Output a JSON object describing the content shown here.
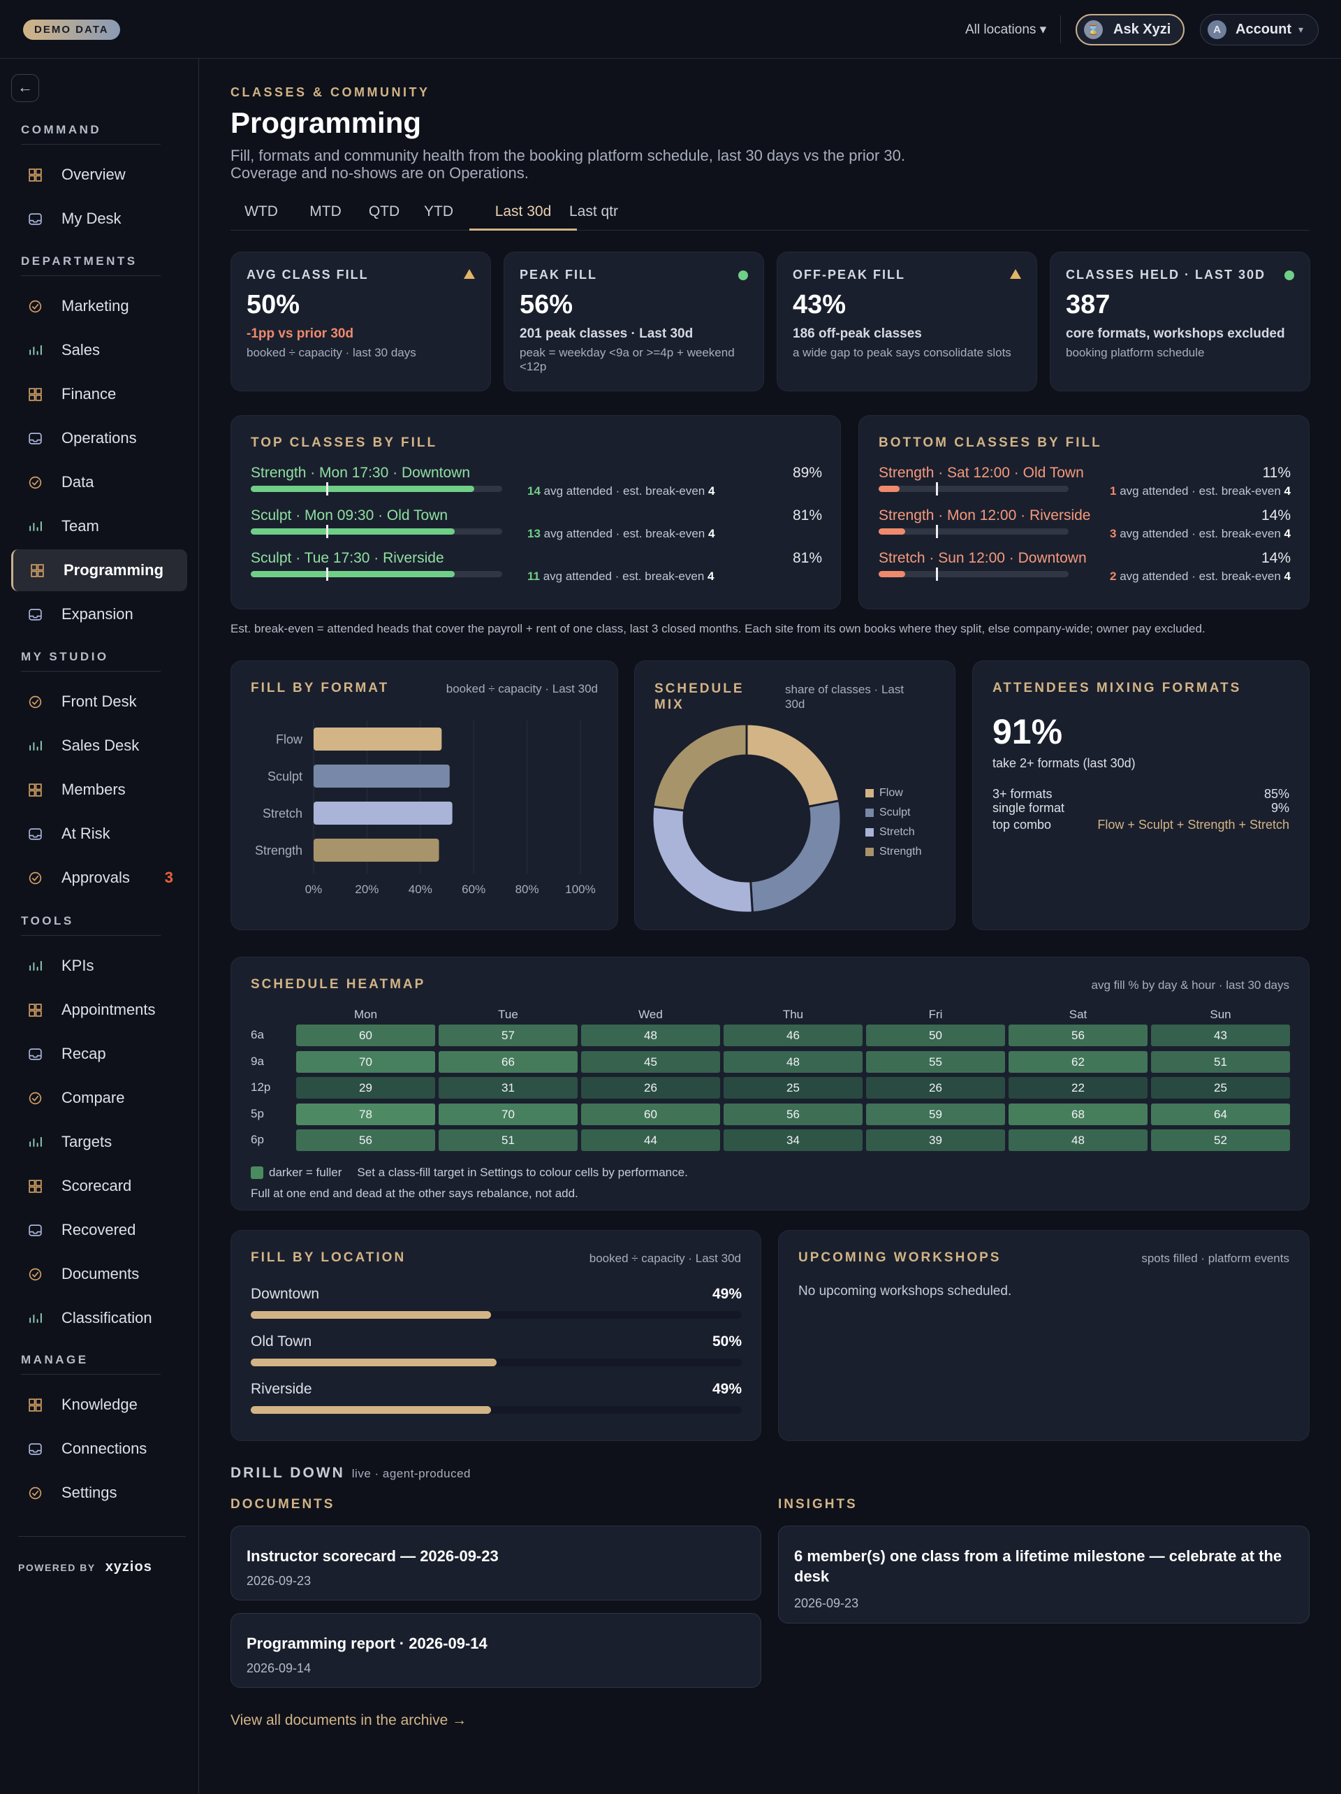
{
  "topbar": {
    "demo_badge": "DEMO DATA",
    "locations": "All locations ▾",
    "ask_label": "Ask Xyzi",
    "ask_avatar": "⌛",
    "account_label": "Account",
    "account_avatar": "A",
    "account_caret": "▾"
  },
  "sidebar": {
    "back_glyph": "←",
    "sections": [
      {
        "label": "COMMAND",
        "items": [
          "Overview",
          "My Desk"
        ]
      },
      {
        "label": "DEPARTMENTS",
        "items": [
          "Marketing",
          "Sales",
          "Finance",
          "Operations",
          "Data",
          "Team",
          "Programming",
          "Expansion"
        ]
      },
      {
        "label": "MY STUDIO",
        "items": [
          "Front Desk",
          "Sales Desk",
          "Members",
          "At Risk",
          "Approvals"
        ]
      },
      {
        "label": "TOOLS",
        "items": [
          "KPIs",
          "Appointments",
          "Recap",
          "Compare",
          "Targets",
          "Scorecard",
          "Recovered",
          "Documents",
          "Classification"
        ]
      },
      {
        "label": "MANAGE",
        "items": [
          "Knowledge",
          "Connections",
          "Settings"
        ]
      }
    ],
    "active": "Programming",
    "approvals_badge": "3",
    "powered_by": "POWERED BY",
    "brand": "xyzios",
    "icon_color": "#d2a064"
  },
  "page": {
    "eyebrow": "CLASSES & COMMUNITY",
    "title": "Programming",
    "subtitle_1": "Fill, formats and community health from the booking platform schedule, last 30 days vs the prior 30.",
    "subtitle_2": "Coverage and no-shows are on Operations.",
    "tabs": [
      "WTD",
      "MTD",
      "QTD",
      "YTD",
      "Last 30d",
      "Last qtr"
    ],
    "active_tab": "Last 30d"
  },
  "kpis": [
    {
      "label": "AVG CLASS FILL",
      "value": "50%",
      "line1": "-1pp vs prior 30d",
      "line2": "booked ÷ capacity · last 30 days",
      "status": "warn"
    },
    {
      "label": "PEAK FILL",
      "value": "56%",
      "line1": "201 peak classes · Last 30d",
      "line2": "peak = weekday <9a or >=4p + weekend <12p",
      "status": "good"
    },
    {
      "label": "OFF-PEAK FILL",
      "value": "43%",
      "line1": "186 off-peak classes",
      "line2": "a wide gap to peak says consolidate slots",
      "status": "warn"
    },
    {
      "label": "CLASSES HELD · LAST 30D",
      "value": "387",
      "line1": "core formats, workshops excluded",
      "line2": "booking platform schedule",
      "status": "good"
    }
  ],
  "top_classes": {
    "title": "TOP CLASSES BY FILL",
    "rows": [
      {
        "name": "Strength · Mon 17:30 · Downtown",
        "fill": 89,
        "pct": "89%",
        "attended": "14",
        "meta": " avg attended · est. break-even ",
        "breakeven": "4"
      },
      {
        "name": "Sculpt · Mon 09:30 · Old Town",
        "fill": 81,
        "pct": "81%",
        "attended": "13",
        "meta": " avg attended · est. break-even ",
        "breakeven": "4"
      },
      {
        "name": "Sculpt · Tue 17:30 · Riverside",
        "fill": 81,
        "pct": "81%",
        "attended": "11",
        "meta": " avg attended · est. break-even ",
        "breakeven": "4"
      }
    ]
  },
  "bottom_classes": {
    "title": "BOTTOM CLASSES BY FILL",
    "rows": [
      {
        "name": "Strength · Sat 12:00 · Old Town",
        "fill": 11,
        "pct": "11%",
        "attended": "1",
        "meta": " avg attended · est. break-even ",
        "breakeven": "4"
      },
      {
        "name": "Strength · Mon 12:00 · Riverside",
        "fill": 14,
        "pct": "14%",
        "attended": "3",
        "meta": " avg attended · est. break-even ",
        "breakeven": "4"
      },
      {
        "name": "Stretch · Sun 12:00 · Downtown",
        "fill": 14,
        "pct": "14%",
        "attended": "2",
        "meta": " avg attended · est. break-even ",
        "breakeven": "4"
      }
    ]
  },
  "breakeven_note": "Est. break-even = attended heads that cover the payroll + rent of one class, last 3 closed months. Each site from its own books where they split, else company-wide; owner pay excluded.",
  "fill_by_format": {
    "title": "FILL BY FORMAT",
    "meta": "booked ÷ capacity · Last 30d"
  },
  "schedule_mix": {
    "title_1": "SCHEDULE",
    "title_2": "MIX",
    "meta_1": "share of classes · Last",
    "meta_2": "30d"
  },
  "chart_data": [
    {
      "type": "bar",
      "orientation": "horizontal",
      "categories": [
        "Flow",
        "Sculpt",
        "Stretch",
        "Strength"
      ],
      "values": [
        48,
        51,
        52,
        47
      ],
      "xlim": [
        0,
        100
      ],
      "xticks": [
        "0%",
        "20%",
        "40%",
        "60%",
        "80%",
        "100%"
      ],
      "grid": true,
      "colors": [
        "#d2b486",
        "#7888a8",
        "#a9b4d8",
        "#a8946a"
      ]
    },
    {
      "type": "pie",
      "donut": true,
      "labels": [
        "Flow",
        "Sculpt",
        "Stretch",
        "Strength"
      ],
      "values": [
        22,
        27,
        28,
        23
      ],
      "colors": [
        "#d2b486",
        "#7888a8",
        "#a9b4d8",
        "#a8946a"
      ],
      "legend": "right"
    },
    {
      "type": "heatmap",
      "days": [
        "Mon",
        "Tue",
        "Wed",
        "Thu",
        "Fri",
        "Sat",
        "Sun"
      ],
      "hours": [
        "6a",
        "9a",
        "12p",
        "5p",
        "6p"
      ],
      "values": [
        [
          60,
          57,
          48,
          46,
          50,
          56,
          43
        ],
        [
          70,
          66,
          45,
          48,
          55,
          62,
          51
        ],
        [
          29,
          31,
          26,
          25,
          26,
          22,
          25
        ],
        [
          78,
          70,
          60,
          56,
          59,
          68,
          64
        ],
        [
          56,
          51,
          44,
          34,
          39,
          48,
          52
        ]
      ]
    }
  ],
  "attendees": {
    "title": "ATTENDEES MIXING FORMATS",
    "value": "91%",
    "caption": "take 2+ formats (last 30d)",
    "rows": [
      {
        "k": "3+ formats",
        "v": "85%"
      },
      {
        "k": "single format",
        "v": "9%"
      },
      {
        "k": "top combo",
        "v": "Flow + Sculpt + Strength + Stretch"
      }
    ]
  },
  "heatmap": {
    "title": "SCHEDULE HEATMAP",
    "meta": "avg fill % by day & hour · last 30 days",
    "legend": "darker = fuller",
    "legend_hint": "Set a class-fill target in Settings to colour cells by performance.",
    "note": "Full at one end and dead at the other says rebalance, not add."
  },
  "fill_by_location": {
    "title": "FILL BY LOCATION",
    "meta": "booked ÷ capacity · Last 30d",
    "rows": [
      {
        "name": "Downtown",
        "pct": "49%",
        "fill": 49
      },
      {
        "name": "Old Town",
        "pct": "50%",
        "fill": 50
      },
      {
        "name": "Riverside",
        "pct": "49%",
        "fill": 49
      }
    ]
  },
  "workshops": {
    "title": "UPCOMING WORKSHOPS",
    "meta": "spots filled · platform events",
    "empty": "No upcoming workshops scheduled."
  },
  "drill": {
    "title": "DRILL DOWN",
    "meta": "live · agent-produced",
    "documents_title": "DOCUMENTS",
    "insights_title": "INSIGHTS",
    "documents": [
      {
        "title": "Instructor scorecard — 2026-09-23",
        "date": "2026-09-23"
      },
      {
        "title": "Programming report · 2026-09-14",
        "date": "2026-09-14"
      }
    ],
    "insights": [
      {
        "title": "6 member(s) one class from a lifetime milestone — celebrate at the desk",
        "date": "2026-09-23"
      }
    ],
    "archive_link": "View all documents in the archive →"
  }
}
